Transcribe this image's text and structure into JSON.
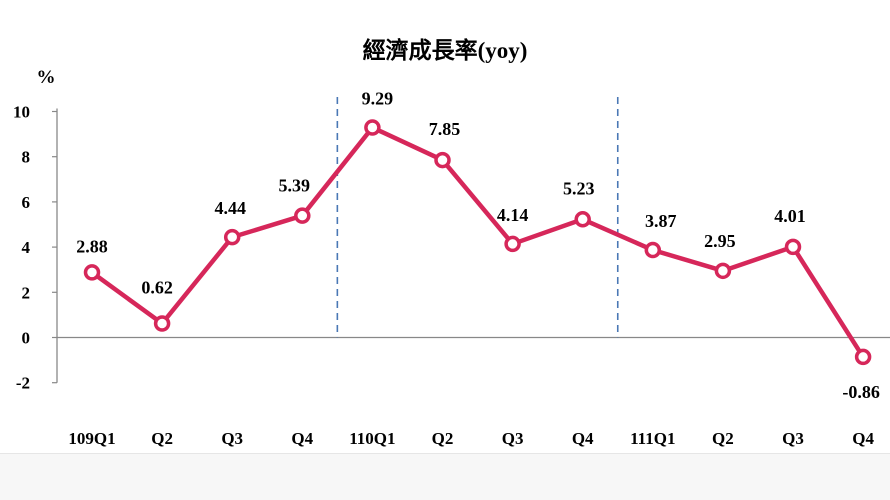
{
  "chart_data": {
    "type": "line",
    "title": "經濟成長率(yoy)",
    "ylabel": "%",
    "categories": [
      "109Q1",
      "Q2",
      "Q3",
      "Q4",
      "110Q1",
      "Q2",
      "Q3",
      "Q4",
      "111Q1",
      "Q2",
      "Q3",
      "Q4"
    ],
    "series": [
      {
        "values": [
          2.88,
          0.62,
          4.44,
          5.39,
          9.29,
          7.85,
          4.14,
          5.23,
          3.87,
          2.95,
          4.01,
          -0.86
        ],
        "labels": [
          "2.88",
          "0.62",
          "4.44",
          "5.39",
          "9.29",
          "7.85",
          "4.14",
          "5.23",
          "3.87",
          "2.95",
          "4.01",
          "-0.86"
        ]
      }
    ],
    "yticks": [
      "10",
      "8",
      "6",
      "4",
      "2",
      "0",
      "-2"
    ],
    "ylim": [
      -2,
      10
    ],
    "year_separators_after": [
      "Q4",
      "Q4"
    ],
    "grid": false,
    "legend": "none",
    "colors": {
      "line": "#d6275a",
      "marker_fill": "#ffffff",
      "axis": "#888888",
      "separator": "#4a78b5",
      "text": "#000000"
    }
  }
}
